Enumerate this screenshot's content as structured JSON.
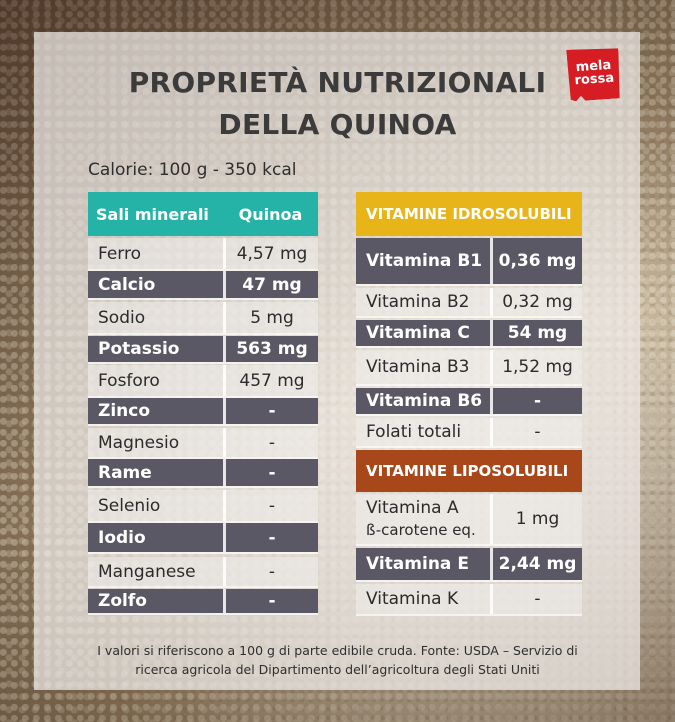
{
  "title_line1": "PROPRIETÀ NUTRIZIONALI",
  "title_line2": "DELLA QUINOA",
  "logo": {
    "line1": "mela",
    "line2": "rossa",
    "color": "#d71d24"
  },
  "calories": "Calorie: 100 g - 350 kcal",
  "minerals": {
    "header": [
      "Sali minerali",
      "Quinoa"
    ],
    "header_color": "#25b3a8",
    "rows": [
      [
        "Ferro",
        "4,57 mg"
      ],
      [
        "Calcio",
        "47 mg"
      ],
      [
        "Sodio",
        "5 mg"
      ],
      [
        "Potassio",
        "563 mg"
      ],
      [
        "Fosforo",
        "457 mg"
      ],
      [
        "Zinco",
        "-"
      ],
      [
        "Magnesio",
        "-"
      ],
      [
        "Rame",
        "-"
      ],
      [
        "Selenio",
        "-"
      ],
      [
        "Iodio",
        "-"
      ],
      [
        "Manganese",
        "-"
      ],
      [
        "Zolfo",
        "-"
      ]
    ]
  },
  "water_vitamins": {
    "header": "VITAMINE IDROSOLUBILI",
    "header_color": "#e7b419",
    "rows": [
      [
        "Vitamina B1",
        "0,36 mg"
      ],
      [
        "Vitamina B2",
        "0,32 mg"
      ],
      [
        "Vitamina C",
        "54 mg"
      ],
      [
        "Vitamina B3",
        "1,52 mg"
      ],
      [
        "Vitamina B6",
        "-"
      ],
      [
        "Folati totali",
        "-"
      ]
    ]
  },
  "fat_vitamins": {
    "header": "VITAMINE LIPOSOLUBILI",
    "header_color": "#a8481a",
    "rows": [
      [
        "Vitamina A",
        "ß-carotene eq.",
        "1 mg"
      ],
      [
        "Vitamina E",
        "",
        "2,44 mg"
      ],
      [
        "Vitamina K",
        "",
        "-"
      ]
    ]
  },
  "footnote_line1": "I valori si riferiscono a 100 g di parte edibile cruda. Fonte: USDA – Servizio di",
  "footnote_line2": "ricerca agricola del Dipartimento dell’agricoltura degli Stati Uniti"
}
